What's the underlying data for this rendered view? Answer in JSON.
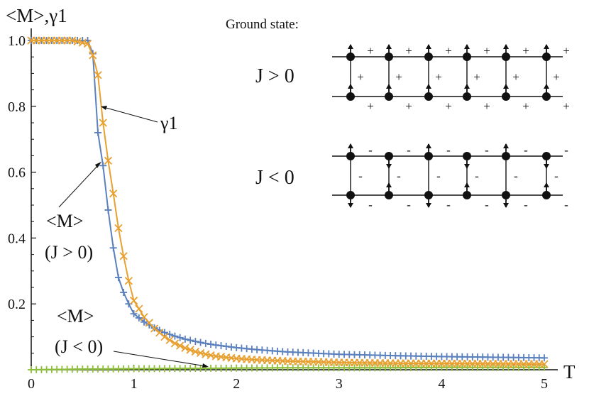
{
  "chart_data": {
    "type": "line",
    "ylabel": "<M>,γ1",
    "xlabel": "T",
    "xlim": [
      0,
      5.1
    ],
    "ylim": [
      0,
      1.0
    ],
    "xticks": [
      "0",
      "1",
      "2",
      "3",
      "4",
      "5"
    ],
    "yticks": [
      "1.0",
      "0.8",
      "0.6",
      "0.4",
      "0.2"
    ],
    "series": [
      {
        "name": "γ1",
        "color": "#E8A030",
        "marker": "x",
        "x": [
          0,
          0.2,
          0.4,
          0.55,
          0.6,
          0.65,
          0.7,
          0.75,
          0.8,
          0.85,
          0.9,
          0.95,
          1.0,
          1.1,
          1.2,
          1.3,
          1.4,
          1.5,
          1.6,
          1.7,
          1.8,
          2.0,
          2.2,
          2.5,
          3.0,
          3.5,
          4.0,
          4.5,
          5.0
        ],
        "y": [
          1.0,
          1.0,
          1.0,
          0.99,
          0.955,
          0.895,
          0.75,
          0.635,
          0.535,
          0.43,
          0.345,
          0.27,
          0.21,
          0.16,
          0.125,
          0.1,
          0.08,
          0.066,
          0.055,
          0.047,
          0.041,
          0.034,
          0.03,
          0.026,
          0.022,
          0.02,
          0.019,
          0.018,
          0.017
        ]
      },
      {
        "name": "<M> (J > 0)",
        "color": "#5B80BE",
        "marker": "+",
        "x": [
          0,
          0.2,
          0.4,
          0.55,
          0.6,
          0.65,
          0.7,
          0.75,
          0.8,
          0.85,
          0.9,
          0.95,
          1.0,
          1.1,
          1.2,
          1.3,
          1.4,
          1.5,
          1.6,
          1.7,
          1.8,
          2.0,
          2.2,
          2.5,
          3.0,
          3.5,
          4.0,
          4.5,
          5.0
        ],
        "y": [
          1.0,
          1.0,
          1.0,
          1.0,
          0.96,
          0.72,
          0.62,
          0.485,
          0.37,
          0.28,
          0.235,
          0.2,
          0.17,
          0.145,
          0.127,
          0.113,
          0.102,
          0.093,
          0.086,
          0.08,
          0.075,
          0.067,
          0.061,
          0.054,
          0.047,
          0.043,
          0.04,
          0.038,
          0.036
        ]
      },
      {
        "name": "<M> (J < 0)",
        "color": "#8DBF3A",
        "marker": "+",
        "x": [
          0,
          0.5,
          1.0,
          1.5,
          2.0,
          2.5,
          3.0,
          3.5,
          4.0,
          4.5,
          5.0
        ],
        "y": [
          0.0,
          0.002,
          0.003,
          0.004,
          0.005,
          0.006,
          0.006,
          0.006,
          0.007,
          0.007,
          0.007
        ]
      }
    ],
    "annotations": {
      "gamma_label": "γ1",
      "m_pos_line1": "<M>",
      "m_pos_line2": "(J > 0)",
      "m_neg_line1": "<M>",
      "m_neg_line2": "(J < 0)"
    }
  },
  "inset": {
    "title": "Ground state:",
    "row_pos_label": "J > 0",
    "row_neg_label": "J < 0",
    "pos_sign": "+",
    "neg_sign": "-"
  }
}
